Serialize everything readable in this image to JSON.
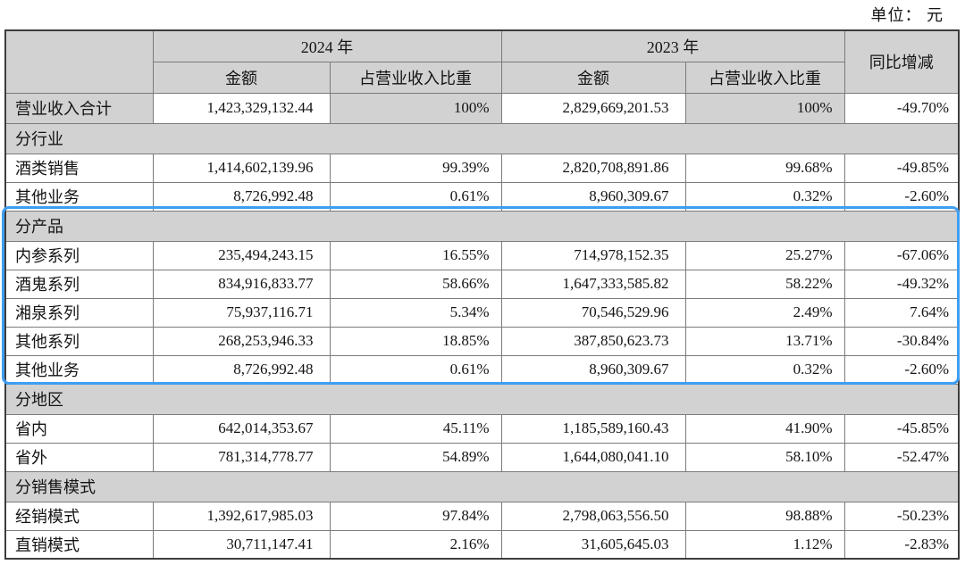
{
  "unit_label": "单位： 元",
  "highlight": {
    "color": "#3f9ef3",
    "section": "分产品",
    "covers_rows": [
      "分产品",
      "内参系列",
      "酒鬼系列",
      "湘泉系列",
      "其他系列",
      "其他业务"
    ]
  },
  "table": {
    "header": {
      "year_2024": "2024 年",
      "year_2023": "2023 年",
      "amount": "金额",
      "ratio": "占营业收入比重",
      "yoy": "同比增减"
    },
    "rows": [
      {
        "type": "total",
        "label": "营业收入合计",
        "amount_2024": "1,423,329,132.44",
        "ratio_2024": "100%",
        "amount_2023": "2,829,669,201.53",
        "ratio_2023": "100%",
        "yoy": "-49.70%"
      },
      {
        "type": "section",
        "label": "分行业"
      },
      {
        "type": "data",
        "label": "酒类销售",
        "amount_2024": "1,414,602,139.96",
        "ratio_2024": "99.39%",
        "amount_2023": "2,820,708,891.86",
        "ratio_2023": "99.68%",
        "yoy": "-49.85%"
      },
      {
        "type": "data",
        "label": "其他业务",
        "amount_2024": "8,726,992.48",
        "ratio_2024": "0.61%",
        "amount_2023": "8,960,309.67",
        "ratio_2023": "0.32%",
        "yoy": "-2.60%"
      },
      {
        "type": "section",
        "label": "分产品"
      },
      {
        "type": "data",
        "label": "内参系列",
        "amount_2024": "235,494,243.15",
        "ratio_2024": "16.55%",
        "amount_2023": "714,978,152.35",
        "ratio_2023": "25.27%",
        "yoy": "-67.06%"
      },
      {
        "type": "data",
        "label": "酒鬼系列",
        "amount_2024": "834,916,833.77",
        "ratio_2024": "58.66%",
        "amount_2023": "1,647,333,585.82",
        "ratio_2023": "58.22%",
        "yoy": "-49.32%"
      },
      {
        "type": "data",
        "label": "湘泉系列",
        "amount_2024": "75,937,116.71",
        "ratio_2024": "5.34%",
        "amount_2023": "70,546,529.96",
        "ratio_2023": "2.49%",
        "yoy": "7.64%"
      },
      {
        "type": "data",
        "label": "其他系列",
        "amount_2024": "268,253,946.33",
        "ratio_2024": "18.85%",
        "amount_2023": "387,850,623.73",
        "ratio_2023": "13.71%",
        "yoy": "-30.84%"
      },
      {
        "type": "data",
        "label": "其他业务",
        "amount_2024": "8,726,992.48",
        "ratio_2024": "0.61%",
        "amount_2023": "8,960,309.67",
        "ratio_2023": "0.32%",
        "yoy": "-2.60%"
      },
      {
        "type": "section",
        "label": "分地区"
      },
      {
        "type": "data",
        "label": "省内",
        "amount_2024": "642,014,353.67",
        "ratio_2024": "45.11%",
        "amount_2023": "1,185,589,160.43",
        "ratio_2023": "41.90%",
        "yoy": "-45.85%"
      },
      {
        "type": "data",
        "label": "省外",
        "amount_2024": "781,314,778.77",
        "ratio_2024": "54.89%",
        "amount_2023": "1,644,080,041.10",
        "ratio_2023": "58.10%",
        "yoy": "-52.47%"
      },
      {
        "type": "section",
        "label": "分销售模式"
      },
      {
        "type": "data",
        "label": "经销模式",
        "amount_2024": "1,392,617,985.03",
        "ratio_2024": "97.84%",
        "amount_2023": "2,798,063,556.50",
        "ratio_2023": "98.88%",
        "yoy": "-50.23%"
      },
      {
        "type": "data",
        "label": "直销模式",
        "amount_2024": "30,711,147.41",
        "ratio_2024": "2.16%",
        "amount_2023": "31,605,645.03",
        "ratio_2023": "1.12%",
        "yoy": "-2.83%"
      }
    ]
  }
}
